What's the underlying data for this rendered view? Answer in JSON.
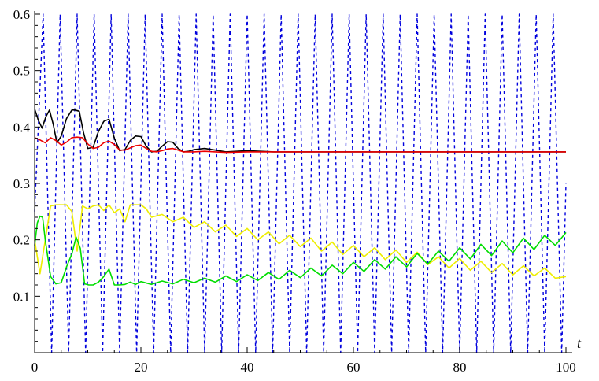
{
  "chart_data": {
    "type": "line",
    "title": "",
    "xlabel": "t",
    "ylabel": "",
    "xlim": [
      0,
      100
    ],
    "ylim": [
      0,
      0.6
    ],
    "x_ticks": [
      "0",
      "20",
      "40",
      "60",
      "80",
      "100"
    ],
    "y_ticks": [
      "0.1",
      "0.2",
      "0.3",
      "0.4",
      "0.5",
      "0.6"
    ],
    "grid": false,
    "series": [
      {
        "color": "#0000dd",
        "style": "dashed",
        "x": [
          0,
          1.6,
          3.2,
          4.8,
          6.4,
          8.0,
          9.6,
          11.2,
          12.8,
          14.4,
          16.0,
          17.6,
          19.2,
          20.8,
          22.4,
          24.0,
          25.6,
          27.2,
          28.8,
          30.4,
          32.0,
          33.6,
          35.2,
          36.8,
          38.4,
          40.0,
          41.6,
          43.2,
          44.8,
          46.4,
          48.0,
          49.6,
          51.2,
          52.8,
          54.4,
          56.0,
          57.6,
          59.2,
          60.8,
          62.4,
          64.0,
          65.6,
          67.2,
          68.8,
          70.4,
          72.0,
          73.6,
          75.2,
          76.8,
          78.4,
          80.0,
          81.6,
          83.2,
          84.8,
          86.4,
          88.0,
          89.6,
          91.2,
          92.8,
          94.4,
          96.0,
          97.6,
          99.2,
          100
        ],
        "y": [
          0.25,
          0.6,
          0.0,
          0.6,
          0.0,
          0.6,
          0.0,
          0.6,
          0.0,
          0.6,
          0.0,
          0.6,
          0.0,
          0.6,
          0.0,
          0.6,
          0.0,
          0.6,
          0.0,
          0.6,
          0.0,
          0.6,
          0.0,
          0.6,
          0.0,
          0.6,
          0.0,
          0.6,
          0.0,
          0.6,
          0.0,
          0.6,
          0.0,
          0.6,
          0.0,
          0.6,
          0.0,
          0.6,
          0.0,
          0.6,
          0.0,
          0.6,
          0.0,
          0.6,
          0.0,
          0.6,
          0.0,
          0.6,
          0.0,
          0.6,
          0.0,
          0.6,
          0.0,
          0.6,
          0.0,
          0.6,
          0.0,
          0.6,
          0.0,
          0.6,
          0.0,
          0.6,
          0.0,
          0.3
        ]
      },
      {
        "color": "#000000",
        "style": "solid",
        "x": [
          0,
          0.7,
          1.4,
          2.1,
          2.8,
          3.5,
          4.2,
          5.0,
          6.0,
          7.0,
          7.6,
          8.4,
          9.2,
          10.0,
          11.0,
          12.0,
          13.0,
          14.0,
          15.0,
          16.0,
          17.0,
          18.0,
          19.0,
          20.0,
          21.0,
          22.0,
          23.0,
          24.0,
          25.0,
          26.0,
          27.0,
          28.0,
          29.0,
          30.0,
          32.0,
          34.0,
          36.0,
          38.0,
          40.0,
          45.0,
          50.0,
          60.0,
          70.0,
          80.0,
          90.0,
          100.0
        ],
        "y": [
          0.432,
          0.412,
          0.398,
          0.418,
          0.43,
          0.405,
          0.372,
          0.384,
          0.415,
          0.43,
          0.43,
          0.428,
          0.39,
          0.362,
          0.364,
          0.392,
          0.41,
          0.414,
          0.38,
          0.358,
          0.36,
          0.376,
          0.384,
          0.383,
          0.366,
          0.356,
          0.357,
          0.366,
          0.374,
          0.373,
          0.362,
          0.356,
          0.357,
          0.36,
          0.362,
          0.359,
          0.356,
          0.357,
          0.358,
          0.356,
          0.356,
          0.356,
          0.356,
          0.356,
          0.356,
          0.356
        ]
      },
      {
        "color": "#ee0000",
        "style": "solid",
        "x": [
          0,
          1.0,
          2.0,
          3.0,
          4.0,
          5.0,
          6.0,
          7.0,
          8.0,
          9.0,
          10.0,
          11.0,
          12.0,
          13.0,
          14.0,
          15.0,
          16.0,
          17.0,
          18.0,
          19.0,
          20.0,
          21.0,
          22.0,
          23.0,
          24.0,
          25.0,
          26.0,
          27.0,
          28.0,
          30.0,
          32.0,
          34.0,
          36.0,
          40.0,
          50.0,
          60.0,
          70.0,
          80.0,
          90.0,
          100.0
        ],
        "y": [
          0.381,
          0.377,
          0.372,
          0.381,
          0.376,
          0.368,
          0.373,
          0.381,
          0.382,
          0.381,
          0.37,
          0.362,
          0.364,
          0.372,
          0.375,
          0.369,
          0.359,
          0.359,
          0.363,
          0.367,
          0.368,
          0.362,
          0.357,
          0.356,
          0.358,
          0.361,
          0.362,
          0.359,
          0.356,
          0.356,
          0.357,
          0.356,
          0.355,
          0.356,
          0.356,
          0.356,
          0.356,
          0.356,
          0.356,
          0.356
        ]
      },
      {
        "color": "#eeee00",
        "style": "solid",
        "x": [
          0,
          1.0,
          2.0,
          3.0,
          4.0,
          5.0,
          6.0,
          7.0,
          8.0,
          9.0,
          10.0,
          11.0,
          12.0,
          13.0,
          14.0,
          15.0,
          16.0,
          17.0,
          18.0,
          19.0,
          20.0,
          21.0,
          22.0,
          24.0,
          26.0,
          28.0,
          30.0,
          32.0,
          34.0,
          36.0,
          38.0,
          40.0,
          42.0,
          44.0,
          46.0,
          48.0,
          50.0,
          52.0,
          54.0,
          56.0,
          58.0,
          60.0,
          62.0,
          64.0,
          66.0,
          68.0,
          70.0,
          72.0,
          74.0,
          76.0,
          78.0,
          80.0,
          82.0,
          84.0,
          86.0,
          88.0,
          90.0,
          92.0,
          94.0,
          96.0,
          98.0,
          100.0
        ],
        "y": [
          0.2,
          0.14,
          0.2,
          0.26,
          0.262,
          0.262,
          0.262,
          0.25,
          0.18,
          0.26,
          0.255,
          0.26,
          0.262,
          0.252,
          0.262,
          0.248,
          0.255,
          0.232,
          0.262,
          0.262,
          0.262,
          0.255,
          0.24,
          0.245,
          0.232,
          0.24,
          0.222,
          0.232,
          0.214,
          0.226,
          0.206,
          0.22,
          0.2,
          0.214,
          0.193,
          0.208,
          0.188,
          0.203,
          0.18,
          0.196,
          0.174,
          0.19,
          0.17,
          0.186,
          0.165,
          0.182,
          0.16,
          0.178,
          0.156,
          0.17,
          0.15,
          0.167,
          0.146,
          0.162,
          0.142,
          0.158,
          0.138,
          0.154,
          0.136,
          0.15,
          0.132,
          0.135
        ]
      },
      {
        "color": "#00dd00",
        "style": "solid",
        "x": [
          0,
          0.5,
          1.0,
          1.5,
          2.0,
          3.0,
          4.0,
          5.0,
          6.0,
          7.0,
          7.8,
          8.6,
          9.4,
          10.2,
          11.0,
          12.0,
          13.0,
          14.0,
          15.0,
          16.0,
          17.0,
          18.0,
          19.0,
          20.0,
          22.0,
          24.0,
          26.0,
          28.0,
          30.0,
          32.0,
          34.0,
          36.0,
          38.0,
          40.0,
          42.0,
          44.0,
          46.0,
          48.0,
          50.0,
          52.0,
          54.0,
          56.0,
          58.0,
          60.0,
          62.0,
          64.0,
          66.0,
          68.0,
          70.0,
          72.0,
          74.0,
          76.0,
          78.0,
          80.0,
          82.0,
          84.0,
          86.0,
          88.0,
          90.0,
          92.0,
          94.0,
          96.0,
          98.0,
          100.0
        ],
        "y": [
          0.19,
          0.23,
          0.242,
          0.24,
          0.2,
          0.135,
          0.122,
          0.124,
          0.152,
          0.175,
          0.205,
          0.185,
          0.122,
          0.12,
          0.12,
          0.125,
          0.135,
          0.148,
          0.12,
          0.12,
          0.121,
          0.125,
          0.121,
          0.126,
          0.121,
          0.127,
          0.122,
          0.13,
          0.124,
          0.132,
          0.125,
          0.136,
          0.126,
          0.138,
          0.128,
          0.142,
          0.13,
          0.146,
          0.133,
          0.15,
          0.136,
          0.155,
          0.14,
          0.16,
          0.144,
          0.165,
          0.148,
          0.17,
          0.152,
          0.176,
          0.157,
          0.18,
          0.162,
          0.186,
          0.166,
          0.192,
          0.172,
          0.198,
          0.177,
          0.203,
          0.183,
          0.208,
          0.19,
          0.213
        ]
      }
    ]
  }
}
